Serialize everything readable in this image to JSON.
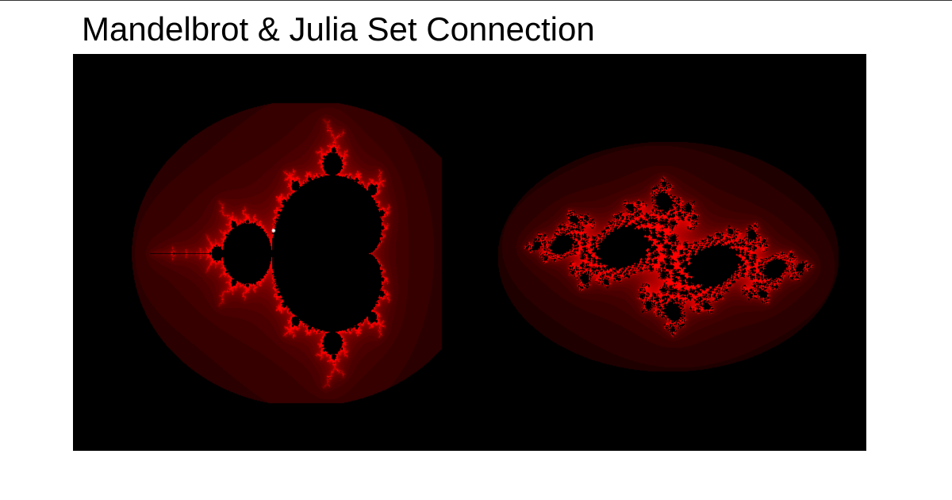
{
  "page": {
    "title": "Mandelbrot & Julia Set Connection"
  },
  "fractals": {
    "mandelbrot": {
      "re_range": [
        -2.5,
        1.0
      ],
      "im_range": [
        -1.25,
        1.25
      ],
      "max_iterations": 120,
      "selected_point": [
        -0.7269,
        0.1889
      ]
    },
    "julia": {
      "c": [
        -0.7269,
        0.1889
      ],
      "re_range": [
        -1.75,
        1.75
      ],
      "im_range": [
        -1.25,
        1.25
      ],
      "max_iterations": 120
    },
    "palette": {
      "interior": "#000000",
      "background": "#000000",
      "escape_color": "#ff0000",
      "marker_color": "#ffffff"
    }
  }
}
